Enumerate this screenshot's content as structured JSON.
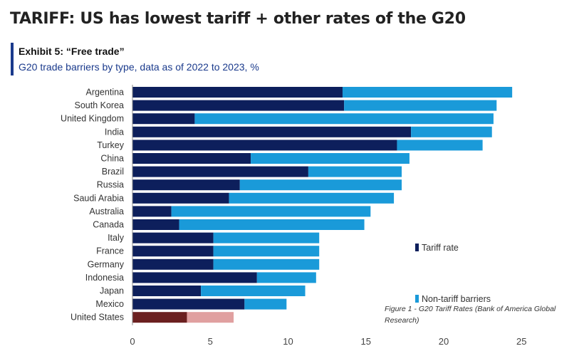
{
  "title": "TARIFF: US has lowest tariff + other rates of the G20",
  "exhibit": "Exhibit 5: “Free trade”",
  "caption": "Figure 1 - G20 Tariff Rates (Bank of America Global Research)",
  "chart_data": {
    "type": "bar",
    "orientation": "horizontal",
    "stacked": true,
    "title": "Exhibit 5: “Free trade”",
    "subtitle": "G20 trade barriers by type, data as of 2022 to 2023, %",
    "xlabel": "",
    "ylabel": "",
    "xlim": [
      0,
      25
    ],
    "xticks": [
      0,
      5,
      10,
      15,
      20,
      25
    ],
    "grid": false,
    "legend": "right",
    "categories": [
      "Argentina",
      "South Korea",
      "United Kingdom",
      "India",
      "Turkey",
      "China",
      "Brazil",
      "Russia",
      "Saudi Arabia",
      "Australia",
      "Canada",
      "Italy",
      "France",
      "Germany",
      "Indonesia",
      "Japan",
      "Mexico",
      "United States"
    ],
    "series": [
      {
        "name": "Tariff rate",
        "color": "#0d1f5c",
        "highlight_color": "#6b2020",
        "values": [
          13.5,
          13.6,
          4.0,
          17.9,
          17.0,
          7.6,
          11.3,
          6.9,
          6.2,
          2.5,
          3.0,
          5.2,
          5.2,
          5.2,
          8.0,
          4.4,
          7.2,
          3.5
        ]
      },
      {
        "name": "Non-tariff barriers",
        "color": "#1a9ad9",
        "highlight_color": "#e0a0a0",
        "values": [
          10.9,
          9.8,
          19.2,
          5.2,
          5.5,
          10.2,
          6.0,
          10.4,
          10.6,
          12.8,
          11.9,
          6.8,
          6.8,
          6.8,
          3.8,
          6.7,
          2.7,
          3.0
        ]
      }
    ],
    "highlighted_category": "United States"
  }
}
